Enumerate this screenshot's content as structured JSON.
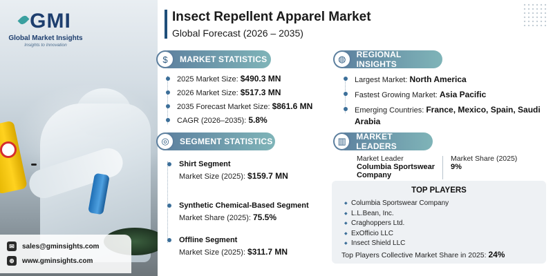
{
  "brand": {
    "logo_text": "GMI",
    "name": "Global Market Insights",
    "tagline": "Insights to Innovation"
  },
  "header": {
    "title": "Insect Repellent Apparel Market",
    "subtitle": "Global Forecast (2026 – 2035)"
  },
  "contact": {
    "email": "sales@gminsights.com",
    "website": "www.gminsights.com"
  },
  "market_statistics": {
    "heading": "MARKET STATISTICS",
    "icon": "globe-dollar-icon",
    "items": [
      {
        "label": "2025 Market Size:",
        "value": "$490.3 MN"
      },
      {
        "label": "2026 Market Size:",
        "value": "$517.3 MN"
      },
      {
        "label": "2035 Forecast Market Size:",
        "value": "$861.6 MN"
      },
      {
        "label": "CAGR (2026–2035):",
        "value": "5.8%"
      }
    ]
  },
  "regional_insights": {
    "heading": "REGIONAL INSIGHTS",
    "icon": "globe-icon",
    "items": [
      {
        "label": "Largest Market:",
        "value": "North America"
      },
      {
        "label": "Fastest Growing Market:",
        "value": "Asia Pacific"
      },
      {
        "label": "Emerging Countries:",
        "value": "France, Mexico, Spain, Saudi Arabia"
      }
    ]
  },
  "segment_statistics": {
    "heading": "SEGMENT STATISTICS",
    "icon": "target-icon",
    "segments": [
      {
        "title": "Shirt Segment",
        "label": "Market Size (2025):",
        "value": "$159.7 MN"
      },
      {
        "title": "Synthetic Chemical-Based Segment",
        "label": "Market Share (2025):",
        "value": "75.5%"
      },
      {
        "title": "Offline Segment",
        "label": "Market Size (2025):",
        "value": "$311.7 MN"
      }
    ]
  },
  "market_leaders": {
    "heading": "MARKET LEADERS",
    "icon": "chart-bars-icon",
    "leader_label": "Market Leader",
    "leader_name": "Columbia Sportswear Company",
    "share_label": "Market Share (2025)",
    "share_value": "9%"
  },
  "top_players": {
    "heading": "TOP PLAYERS",
    "players": [
      "Columbia Sportswear Company",
      "L.L.Bean, Inc.",
      "Craghoppers Ltd.",
      "ExOfficio LLC",
      "Insect Shield LLC"
    ],
    "collective_label": "Top Players Collective Market Share in 2025:",
    "collective_value": "24%"
  },
  "colors": {
    "accent_dark": "#1f4f7a",
    "pill_start": "#5c7f9e",
    "pill_end": "#7fb4b8",
    "bullet": "#3c6f99"
  }
}
